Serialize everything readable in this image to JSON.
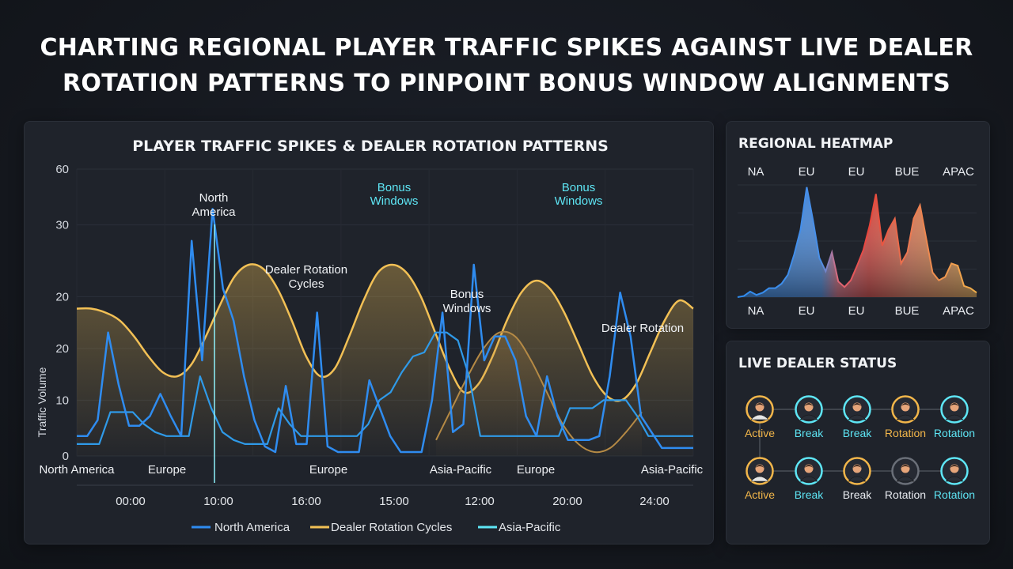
{
  "page": {
    "title_line1": "CHARTING REGIONAL PLAYER TRAFFIC SPIKES AGAINST LIVE DEALER",
    "title_line2": "ROTATION PATTERNS TO PINPOINT BONUS WINDOW ALIGNMENTS"
  },
  "colors": {
    "north_america": "#2f8cf0",
    "dealer_rotation": "#f2c055",
    "asia_pacific": "#5ee6f5",
    "active": "#f2b64a",
    "break": "#5ee6f5",
    "rotation_gray": "#8a8f98"
  },
  "chart_data": [
    {
      "type": "line",
      "title": "PLAYER TRAFFIC SPIKES & DEALER ROTATION PATTERNS",
      "ylabel": "Traffic Volume",
      "xlabel": "",
      "y_ticks": [
        "60",
        "30",
        "20",
        "20",
        "10",
        "0"
      ],
      "x_ticks": [
        "00:00",
        "10:00",
        "16:00",
        "15:00",
        "12:00",
        "20:00",
        "24:00"
      ],
      "grid": true,
      "legend_position": "bottom",
      "series": [
        {
          "name": "North America",
          "color": "#2f8cf0",
          "values": [
            2.5,
            2.5,
            4.5,
            15.5,
            9,
            3.8,
            3.8,
            5,
            7.8,
            5,
            2.5,
            27,
            12,
            31,
            21,
            17,
            10,
            4.5,
            1.2,
            0.5,
            8.8,
            1.5,
            1.5,
            18,
            1.2,
            0.5,
            0.5,
            0.5,
            9.5,
            6,
            2.5,
            0.5,
            0.5,
            0.5,
            7,
            18,
            3,
            4,
            24,
            12,
            15,
            15,
            12,
            5,
            2.5,
            10,
            5,
            2,
            2,
            2,
            2.5,
            10,
            20.5,
            15,
            5,
            3,
            1,
            1,
            1,
            1
          ]
        },
        {
          "name": "Dealer Rotation Cycles",
          "color": "#f2c055",
          "values": [
            18.5,
            18.5,
            18,
            17,
            15,
            12.5,
            10.5,
            10,
            11.5,
            15,
            19,
            22.5,
            24,
            23.5,
            21,
            17,
            12.5,
            10,
            11,
            15,
            19.5,
            23,
            24,
            23,
            20,
            15.5,
            11,
            8,
            9,
            12.5,
            17,
            20.5,
            22,
            21,
            18,
            14,
            10,
            7.5,
            7,
            9,
            13,
            17,
            19.5,
            18.5
          ]
        },
        {
          "name": "Asia-Pacific",
          "color": "#5ee6f5",
          "values": [
            1.5,
            1.5,
            1.5,
            5.5,
            5.5,
            5.5,
            4,
            3,
            2.5,
            2.5,
            2.5,
            10,
            6,
            3,
            2,
            1.5,
            1.5,
            1.5,
            6,
            4,
            2.5,
            2.5,
            2.5,
            2.5,
            2.5,
            2.5,
            4,
            7,
            8,
            10.5,
            12.5,
            13,
            15.5,
            15.5,
            14.5,
            10,
            2.5,
            2.5,
            2.5,
            2.5,
            2.5,
            2.5,
            2.5,
            2.5,
            6,
            6,
            6,
            7,
            7,
            7,
            5,
            2.5,
            2.5,
            2.5,
            2.5,
            2.5
          ]
        },
        {
          "name": "",
          "color": "#b58a45",
          "values": [
            2,
            6,
            10,
            13.5,
            15.5,
            15,
            12,
            8,
            4,
            1.5,
            0.5,
            1,
            3,
            5.5
          ]
        }
      ],
      "bonus_window_lines": 4,
      "annotations": [
        "North America",
        "Bonus Windows",
        "Bonus Windows",
        "Dealer Rotation Cycles",
        "Bonus Windows",
        "Dealer Rotation"
      ],
      "region_labels": [
        "North America",
        "Europe",
        "Europe",
        "Asia-Pacific",
        "Europe",
        "Asia-Pacific"
      ]
    },
    {
      "type": "area",
      "title": "REGIONAL HEATMAP",
      "top_labels": [
        "NA",
        "EU",
        "EU",
        "BUE",
        "APAC"
      ],
      "bottom_labels": [
        "NA",
        "EU",
        "EU",
        "BUE",
        "APAC"
      ],
      "values": [
        0,
        1,
        5,
        2,
        4,
        8,
        8,
        12,
        20,
        38,
        60,
        98,
        68,
        35,
        23,
        40,
        14,
        9,
        15,
        28,
        42,
        64,
        92,
        46,
        60,
        70,
        30,
        40,
        70,
        82,
        52,
        22,
        15,
        18,
        30,
        28,
        10,
        8,
        4
      ]
    }
  ],
  "charts": {
    "traffic": {
      "annotations": {
        "north_america_l1": "North",
        "north_america_l2": "America",
        "bonus_1_l1": "Bonus",
        "bonus_1_l2": "Windows",
        "bonus_2_l1": "Bonus",
        "bonus_2_l2": "Windows",
        "dealer_rot_l1": "Dealer Rotation",
        "dealer_rot_l2": "Cycles",
        "bonus_3_l1": "Bonus",
        "bonus_3_l2": "Windows",
        "dealer_rot_right": "Dealer Rotation"
      }
    }
  },
  "dealer_status": {
    "title": "LIVE DEALER STATUS",
    "rows": [
      [
        {
          "label": "Active",
          "color": "#f2b64a"
        },
        {
          "label": "Break",
          "color": "#5ee6f5"
        },
        {
          "label": "Break",
          "color": "#5ee6f5"
        },
        {
          "label": "Rotation",
          "color": "#f2b64a"
        },
        {
          "label": "Rotation",
          "color": "#5ee6f5"
        }
      ],
      [
        {
          "label": "Active",
          "color": "#f2b64a"
        },
        {
          "label": "Break",
          "color": "#5ee6f5"
        },
        {
          "label": "Break",
          "color": "#e8ebf0"
        },
        {
          "label": "Rotation",
          "color": "#e8ebf0"
        },
        {
          "label": "Rotation",
          "color": "#5ee6f5"
        }
      ]
    ]
  }
}
